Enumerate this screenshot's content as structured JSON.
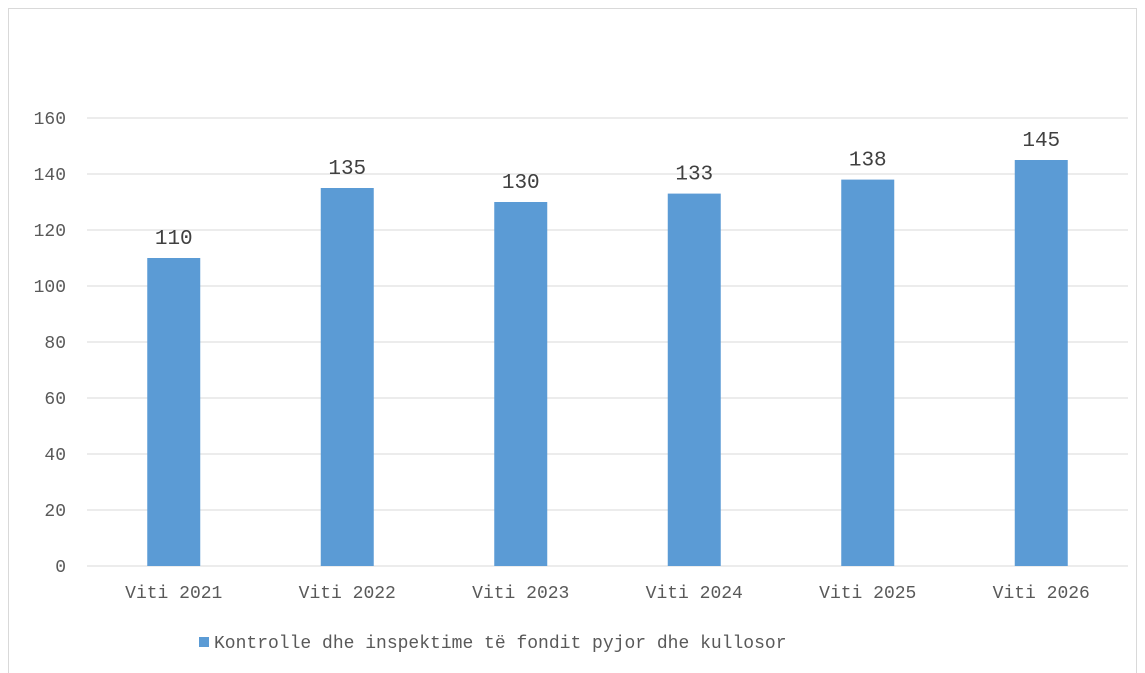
{
  "chart_data": {
    "type": "bar",
    "categories": [
      "Viti 2021",
      "Viti 2022",
      "Viti 2023",
      "Viti 2024",
      "Viti 2025",
      "Viti 2026"
    ],
    "series": [
      {
        "name": "Kontrolle dhe inspektime të fondit pyjor dhe kullosor",
        "values": [
          110,
          135,
          130,
          133,
          138,
          145
        ],
        "color": "#5b9bd5"
      }
    ],
    "yticks": [
      "0",
      "20",
      "40",
      "60",
      "80",
      "100",
      "120",
      "140",
      "160"
    ],
    "ylim": [
      0,
      160
    ],
    "grid": true,
    "legend": "bottom-center",
    "gridColor": "#d9d9d9",
    "axisColor": "#d9d9d9"
  }
}
